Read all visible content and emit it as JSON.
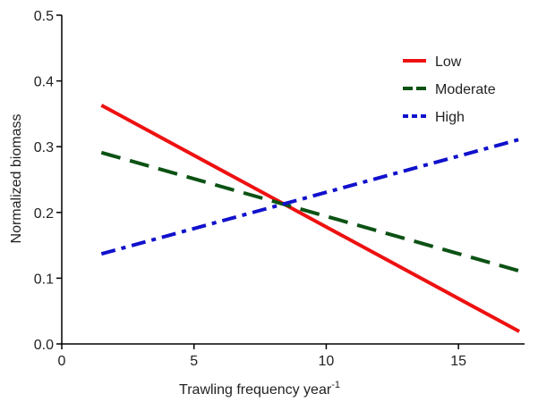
{
  "chart_data": {
    "type": "line",
    "xlabel": "Trawling frequency year",
    "xlabel_superscript": "-1",
    "ylabel": "Normalized biomass",
    "series": [
      {
        "name": "Low",
        "color": "#ee1111",
        "linestyle": "solid",
        "x": [
          1.5,
          17.3
        ],
        "values": [
          0.363,
          0.019
        ]
      },
      {
        "name": "Moderate",
        "color": "#0b5213",
        "linestyle": "dashed",
        "x": [
          1.5,
          17.3
        ],
        "values": [
          0.291,
          0.111
        ]
      },
      {
        "name": "High",
        "color": "#1111cc",
        "linestyle": "dashdot",
        "x": [
          1.5,
          17.3
        ],
        "values": [
          0.137,
          0.311
        ]
      }
    ],
    "xlim": [
      0,
      17.5
    ],
    "xticks": [
      0,
      5,
      10,
      15
    ],
    "ylim": [
      0,
      0.5
    ],
    "yticks": [
      {
        "value": 0,
        "label": "0.0"
      },
      0.1,
      0.2,
      0.3,
      0.4,
      0.5
    ],
    "legend": "upper right"
  }
}
